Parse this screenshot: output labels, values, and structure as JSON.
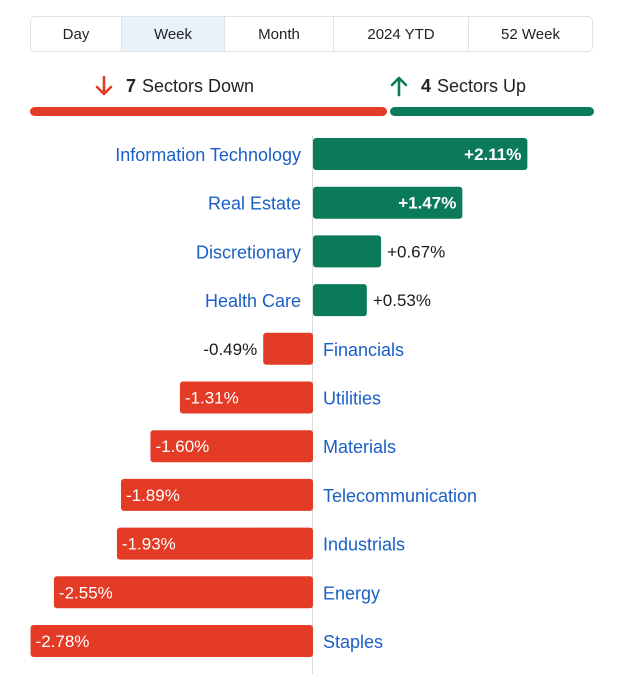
{
  "tabs": [
    {
      "label": "Day",
      "active": false
    },
    {
      "label": "Week",
      "active": true
    },
    {
      "label": "Month",
      "active": false
    },
    {
      "label": "2024 YTD",
      "active": false
    },
    {
      "label": "52 Week",
      "active": false
    }
  ],
  "summary": {
    "down_count": "7",
    "down_label": "Sectors Down",
    "up_count": "4",
    "up_label": "Sectors Up",
    "down_icon": "arrow-down-icon",
    "up_icon": "arrow-up-icon"
  },
  "colors": {
    "positive": "#0b7a5a",
    "negative": "#e33b26",
    "label": "#1a5fc7",
    "active_tab": "#e9f1fb"
  },
  "chart_data": {
    "type": "bar",
    "orientation": "horizontal",
    "unit": "%",
    "categories": [
      "Information Technology",
      "Real Estate",
      "Discretionary",
      "Health Care",
      "Financials",
      "Utilities",
      "Materials",
      "Telecommunication",
      "Industrials",
      "Energy",
      "Staples"
    ],
    "values": [
      2.11,
      1.47,
      0.67,
      0.53,
      -0.49,
      -1.31,
      -1.6,
      -1.89,
      -1.93,
      -2.55,
      -2.78
    ],
    "value_labels": [
      "+2.11%",
      "+1.47%",
      "+0.67%",
      "+0.53%",
      "-0.49%",
      "-1.31%",
      "-1.60%",
      "-1.89%",
      "-1.93%",
      "-2.55%",
      "-2.78%"
    ]
  }
}
